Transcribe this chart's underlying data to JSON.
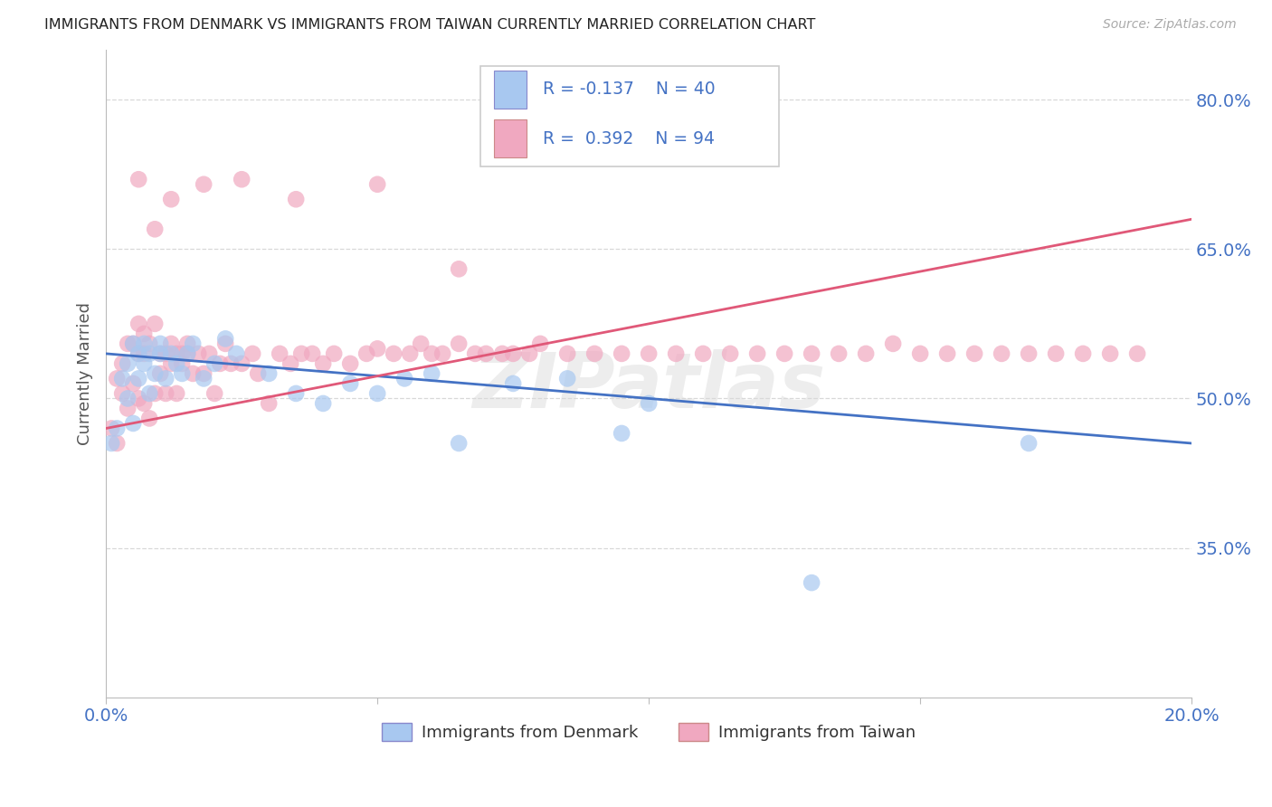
{
  "title": "IMMIGRANTS FROM DENMARK VS IMMIGRANTS FROM TAIWAN CURRENTLY MARRIED CORRELATION CHART",
  "source": "Source: ZipAtlas.com",
  "ylabel": "Currently Married",
  "xlim": [
    0.0,
    0.2
  ],
  "ylim": [
    0.2,
    0.85
  ],
  "yticks": [
    0.35,
    0.5,
    0.65,
    0.8
  ],
  "ytick_labels": [
    "35.0%",
    "50.0%",
    "65.0%",
    "80.0%"
  ],
  "xticks": [
    0.0,
    0.05,
    0.1,
    0.15,
    0.2
  ],
  "xtick_labels": [
    "0.0%",
    "",
    "",
    "",
    "20.0%"
  ],
  "denmark_R": -0.137,
  "denmark_N": 40,
  "taiwan_R": 0.392,
  "taiwan_N": 94,
  "denmark_color": "#a8c8f0",
  "taiwan_color": "#f0a8c0",
  "denmark_line_color": "#4472c4",
  "taiwan_line_color": "#e05878",
  "legend_denmark": "Immigrants from Denmark",
  "legend_taiwan": "Immigrants from Taiwan",
  "background_color": "#ffffff",
  "grid_color": "#d8d8d8",
  "title_color": "#222222",
  "axis_label_color": "#555555",
  "tick_label_color": "#4472c4",
  "watermark": "ZIPatlas",
  "denmark_x": [
    0.001,
    0.002,
    0.003,
    0.004,
    0.004,
    0.005,
    0.005,
    0.006,
    0.006,
    0.007,
    0.007,
    0.008,
    0.008,
    0.009,
    0.01,
    0.01,
    0.011,
    0.012,
    0.013,
    0.014,
    0.015,
    0.016,
    0.018,
    0.02,
    0.022,
    0.024,
    0.03,
    0.035,
    0.04,
    0.045,
    0.05,
    0.055,
    0.06,
    0.065,
    0.075,
    0.085,
    0.095,
    0.1,
    0.13,
    0.17
  ],
  "denmark_y": [
    0.455,
    0.47,
    0.52,
    0.5,
    0.535,
    0.475,
    0.555,
    0.52,
    0.545,
    0.535,
    0.555,
    0.505,
    0.545,
    0.525,
    0.545,
    0.555,
    0.52,
    0.545,
    0.535,
    0.525,
    0.545,
    0.555,
    0.52,
    0.535,
    0.56,
    0.545,
    0.525,
    0.505,
    0.495,
    0.515,
    0.505,
    0.52,
    0.525,
    0.455,
    0.515,
    0.52,
    0.465,
    0.495,
    0.315,
    0.455
  ],
  "taiwan_x": [
    0.001,
    0.002,
    0.002,
    0.003,
    0.003,
    0.004,
    0.004,
    0.005,
    0.005,
    0.006,
    0.006,
    0.006,
    0.007,
    0.007,
    0.007,
    0.008,
    0.008,
    0.009,
    0.009,
    0.01,
    0.01,
    0.011,
    0.011,
    0.012,
    0.012,
    0.013,
    0.013,
    0.014,
    0.014,
    0.015,
    0.015,
    0.016,
    0.017,
    0.018,
    0.019,
    0.02,
    0.021,
    0.022,
    0.023,
    0.025,
    0.027,
    0.028,
    0.03,
    0.032,
    0.034,
    0.036,
    0.038,
    0.04,
    0.042,
    0.045,
    0.048,
    0.05,
    0.053,
    0.056,
    0.058,
    0.06,
    0.062,
    0.065,
    0.068,
    0.07,
    0.073,
    0.075,
    0.078,
    0.08,
    0.085,
    0.09,
    0.095,
    0.1,
    0.105,
    0.11,
    0.115,
    0.12,
    0.125,
    0.13,
    0.135,
    0.14,
    0.145,
    0.15,
    0.155,
    0.16,
    0.165,
    0.17,
    0.175,
    0.18,
    0.185,
    0.19,
    0.006,
    0.009,
    0.012,
    0.018,
    0.025,
    0.035,
    0.05,
    0.065
  ],
  "taiwan_y": [
    0.47,
    0.52,
    0.455,
    0.535,
    0.505,
    0.49,
    0.555,
    0.515,
    0.555,
    0.5,
    0.545,
    0.575,
    0.495,
    0.545,
    0.565,
    0.48,
    0.555,
    0.505,
    0.575,
    0.525,
    0.545,
    0.545,
    0.505,
    0.555,
    0.535,
    0.505,
    0.545,
    0.535,
    0.545,
    0.545,
    0.555,
    0.525,
    0.545,
    0.525,
    0.545,
    0.505,
    0.535,
    0.555,
    0.535,
    0.535,
    0.545,
    0.525,
    0.495,
    0.545,
    0.535,
    0.545,
    0.545,
    0.535,
    0.545,
    0.535,
    0.545,
    0.55,
    0.545,
    0.545,
    0.555,
    0.545,
    0.545,
    0.555,
    0.545,
    0.545,
    0.545,
    0.545,
    0.545,
    0.555,
    0.545,
    0.545,
    0.545,
    0.545,
    0.545,
    0.545,
    0.545,
    0.545,
    0.545,
    0.545,
    0.545,
    0.545,
    0.555,
    0.545,
    0.545,
    0.545,
    0.545,
    0.545,
    0.545,
    0.545,
    0.545,
    0.545,
    0.72,
    0.67,
    0.7,
    0.715,
    0.72,
    0.7,
    0.715,
    0.63
  ]
}
